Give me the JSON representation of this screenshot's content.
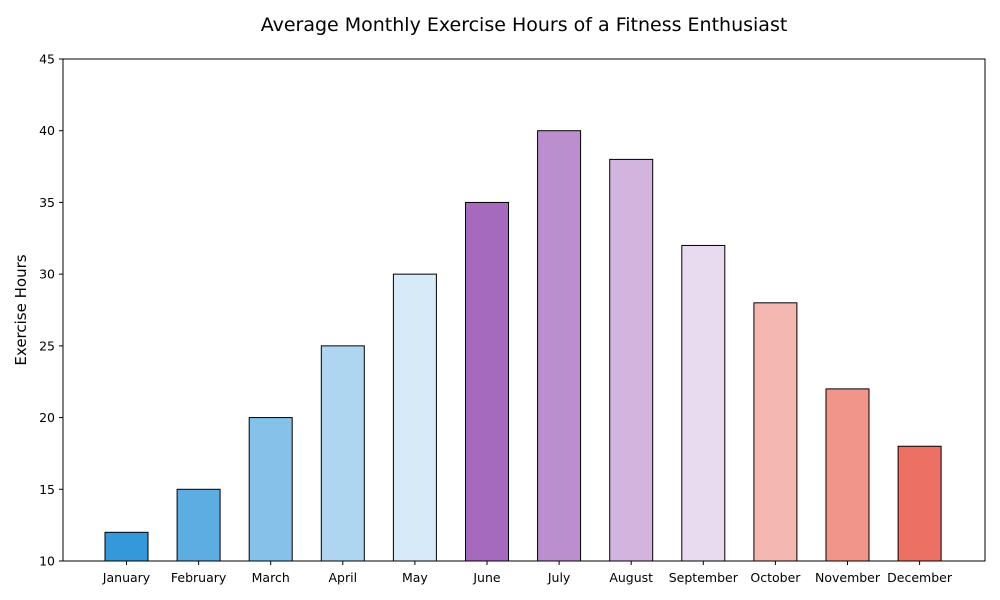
{
  "chart_data": {
    "type": "bar",
    "title": "Average Monthly Exercise Hours of a Fitness Enthusiast",
    "xlabel": "",
    "ylabel": "Exercise Hours",
    "categories": [
      "January",
      "February",
      "March",
      "April",
      "May",
      "June",
      "July",
      "August",
      "September",
      "October",
      "November",
      "December"
    ],
    "values": [
      12,
      15,
      20,
      25,
      30,
      35,
      40,
      38,
      32,
      28,
      22,
      18
    ],
    "colors": [
      "#3498db",
      "#5dade2",
      "#85c1e9",
      "#aed6f1",
      "#d6eaf8",
      "#a569bd",
      "#bb8fce",
      "#d2b4de",
      "#e8daef",
      "#f5b7b1",
      "#f1948a",
      "#ec7063"
    ],
    "bar_edge_color": "#000000",
    "ylim": [
      10,
      45
    ],
    "yticks": [
      10,
      15,
      20,
      25,
      30,
      35,
      40,
      45
    ],
    "grid": false,
    "legend": "none"
  }
}
